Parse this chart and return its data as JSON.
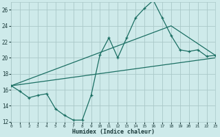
{
  "xlabel": "Humidex (Indice chaleur)",
  "bg_color": "#ceeaea",
  "grid_color": "#aac8c8",
  "line_color": "#1a6e62",
  "xlim": [
    0,
    23
  ],
  "ylim": [
    12,
    27
  ],
  "xticks": [
    0,
    1,
    2,
    3,
    4,
    5,
    6,
    7,
    8,
    9,
    10,
    11,
    12,
    13,
    14,
    15,
    16,
    17,
    18,
    19,
    20,
    21,
    22,
    23
  ],
  "yticks": [
    12,
    14,
    16,
    18,
    20,
    22,
    24,
    26
  ],
  "line1_x": [
    0,
    1,
    2,
    3,
    4,
    5,
    6,
    7,
    8,
    9,
    10,
    11,
    12,
    13,
    14,
    15,
    16,
    17,
    18,
    19,
    20,
    21,
    22,
    23
  ],
  "line1_y": [
    16.5,
    15.8,
    15.0,
    15.3,
    15.5,
    13.6,
    12.8,
    12.2,
    12.2,
    15.3,
    20.4,
    22.5,
    20.0,
    22.5,
    25.0,
    26.2,
    27.2,
    25.0,
    22.8,
    21.0,
    20.8,
    21.0,
    20.2,
    20.3
  ],
  "line2_x": [
    0,
    18,
    23
  ],
  "line2_y": [
    16.5,
    24.0,
    20.3
  ],
  "line3_x": [
    0,
    23
  ],
  "line3_y": [
    16.5,
    20.0
  ]
}
